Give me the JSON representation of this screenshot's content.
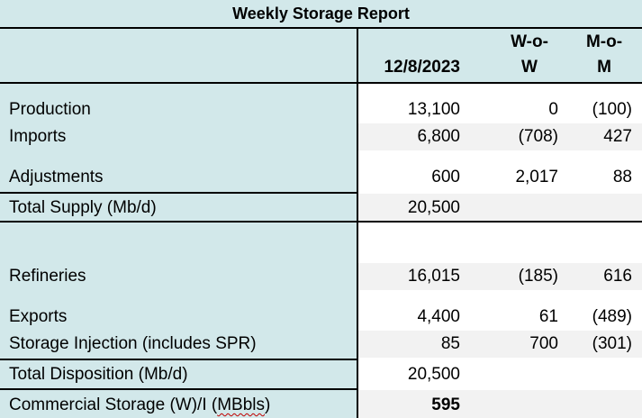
{
  "report": {
    "title": "Weekly Storage Report",
    "columns": {
      "date": "12/8/2023",
      "wow_line1": "W-o-",
      "wow_line2": "W",
      "mom_line1": "M-o-",
      "mom_line2": "M"
    }
  },
  "rows": [
    {
      "label": "Production",
      "current": "13,100",
      "wow": "0",
      "mom": "(100)"
    },
    {
      "label": "Imports",
      "current": "6,800",
      "wow": "(708)",
      "mom": "427"
    },
    {
      "label": "Adjustments",
      "current": "600",
      "wow": "2,017",
      "mom": "88"
    },
    {
      "label": "Total Supply (Mb/d)",
      "current": "20,500",
      "wow": "",
      "mom": ""
    },
    {
      "label": "Refineries",
      "current": "16,015",
      "wow": "(185)",
      "mom": "616"
    },
    {
      "label": "Exports",
      "current": "4,400",
      "wow": "61",
      "mom": "(489)"
    },
    {
      "label": "Storage Injection (includes SPR)",
      "current": "85",
      "wow": "700",
      "mom": "(301)"
    },
    {
      "label": "Total Disposition (Mb/d)",
      "current": "20,500",
      "wow": "",
      "mom": ""
    },
    {
      "label_prefix": "Commercial Storage (W)/I (",
      "label_flagged": "MBbls",
      "label_suffix": ")",
      "current": "595",
      "wow": "",
      "mom": ""
    }
  ]
}
